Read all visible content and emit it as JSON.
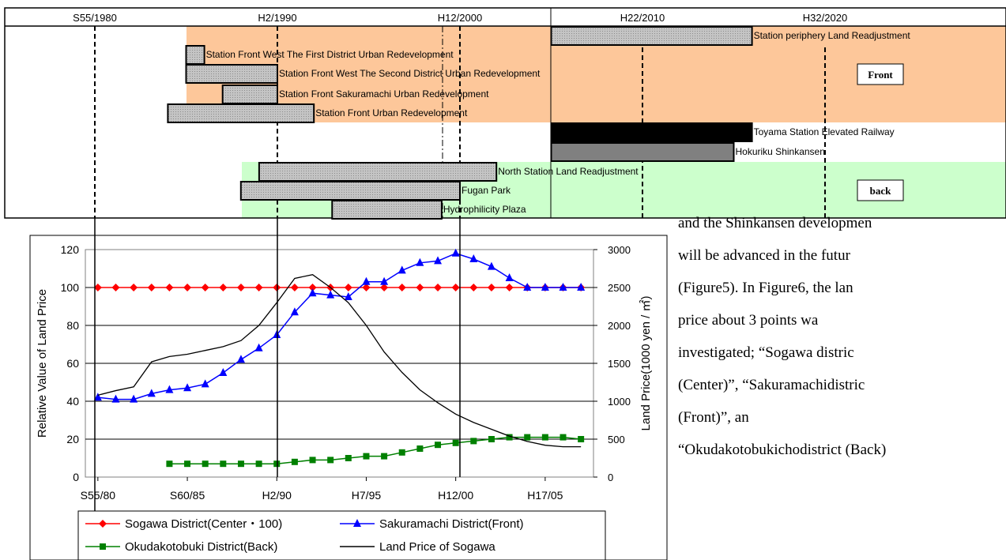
{
  "timeline": {
    "year_labels": [
      "S55/1980",
      "H2/1990",
      "H12/2000",
      "H22/2010",
      "H32/2020"
    ],
    "projects": [
      {
        "name": "Station periphery Land Readjustment",
        "start": 2005.0,
        "end": 2016.0,
        "style": "hatched",
        "zone": "front"
      },
      {
        "name": "Station Front West The First District Urban Redevelopment",
        "start": 1985.0,
        "end": 1986.0,
        "style": "hatched",
        "zone": "front"
      },
      {
        "name": "Station Front West The Second District Urban Redevelopment",
        "start": 1985.0,
        "end": 1990.0,
        "style": "hatched",
        "zone": "front"
      },
      {
        "name": "Station Front Sakuramachi Urban Redevelopment",
        "start": 1987.0,
        "end": 1990.0,
        "style": "hatched",
        "zone": "front"
      },
      {
        "name": "Station Front Urban Redevelopment",
        "start": 1984.0,
        "end": 1992.0,
        "style": "hatched",
        "zone": "front"
      },
      {
        "name": "Toyama Station Elevated Railway",
        "start": 2005.0,
        "end": 2016.0,
        "style": "black",
        "zone": "middle"
      },
      {
        "name": "Hokuriku Shinkansen",
        "start": 2005.0,
        "end": 2015.0,
        "style": "gray",
        "zone": "middle"
      },
      {
        "name": "North Station Land Readjustment",
        "start": 1989.0,
        "end": 2002.0,
        "style": "hatched",
        "zone": "back"
      },
      {
        "name": "Fugan Park",
        "start": 1988.0,
        "end": 2000.0,
        "style": "hatched",
        "zone": "back"
      },
      {
        "name": "Hydrophilicity Plaza",
        "start": 1993.0,
        "end": 1999.0,
        "style": "hatched",
        "zone": "back"
      }
    ],
    "zone_labels": {
      "front": "Front",
      "back": "back"
    },
    "colors": {
      "front": "#fdc79a",
      "back": "#ccffcc",
      "hatched": "#c8c8c8",
      "black": "#000000",
      "gray": "#808080"
    }
  },
  "chart_data": {
    "type": "line",
    "x_tick_labels": [
      "S55/80",
      "S60/85",
      "H2/90",
      "H7/95",
      "H12/00",
      "H17/05"
    ],
    "x_tick_years": [
      1980,
      1985,
      1990,
      1995,
      2000,
      2005
    ],
    "xlim": [
      1979.3,
      2007.7
    ],
    "ylabel": "Relative Value of Land Price",
    "ylim": [
      0,
      120
    ],
    "y_ticks": [
      0,
      20,
      40,
      60,
      80,
      100,
      120
    ],
    "y2label": "Land Price(1000 yen / ㎡)",
    "y2lim": [
      0,
      3000
    ],
    "y2_ticks": [
      0,
      500,
      1000,
      1500,
      2000,
      2500,
      3000
    ],
    "series": [
      {
        "name": "Sogawa District(Center・100)",
        "axis": "left",
        "color": "#ff0000",
        "marker": "diamond",
        "x": [
          1980,
          1981,
          1982,
          1983,
          1984,
          1985,
          1986,
          1987,
          1988,
          1989,
          1990,
          1991,
          1992,
          1993,
          1994,
          1995,
          1996,
          1997,
          1998,
          1999,
          2000,
          2001,
          2002,
          2003,
          2004,
          2005,
          2006,
          2007
        ],
        "values": [
          100,
          100,
          100,
          100,
          100,
          100,
          100,
          100,
          100,
          100,
          100,
          100,
          100,
          100,
          100,
          100,
          100,
          100,
          100,
          100,
          100,
          100,
          100,
          100,
          100,
          100,
          100,
          100
        ]
      },
      {
        "name": "Sakuramachi District(Front)",
        "axis": "left",
        "color": "#0000ff",
        "marker": "triangle",
        "x": [
          1980,
          1981,
          1982,
          1983,
          1984,
          1985,
          1986,
          1987,
          1988,
          1989,
          1990,
          1991,
          1992,
          1993,
          1994,
          1995,
          1996,
          1997,
          1998,
          1999,
          2000,
          2001,
          2002,
          2003,
          2004,
          2005,
          2006,
          2007
        ],
        "values": [
          42,
          41,
          41,
          44,
          46,
          47,
          49,
          55,
          62,
          68,
          75,
          87,
          97,
          96,
          95,
          103,
          103,
          109,
          113,
          114,
          118,
          115,
          111,
          105,
          100,
          100,
          100,
          100
        ]
      },
      {
        "name": "Okudakotobuki District(Back)",
        "axis": "left",
        "color": "#008000",
        "marker": "square",
        "x": [
          1984,
          1985,
          1986,
          1987,
          1988,
          1989,
          1990,
          1991,
          1992,
          1993,
          1994,
          1995,
          1996,
          1997,
          1998,
          1999,
          2000,
          2001,
          2002,
          2003,
          2004,
          2005,
          2006,
          2007
        ],
        "values": [
          7,
          7,
          7,
          7,
          7,
          7,
          7,
          8,
          9,
          9,
          10,
          11,
          11,
          13,
          15,
          17,
          18,
          19,
          20,
          21,
          21,
          21,
          21,
          20
        ]
      },
      {
        "name": "Land Price of Sogawa",
        "axis": "right",
        "color": "#000000",
        "marker": "none",
        "x": [
          1980,
          1981,
          1982,
          1983,
          1984,
          1985,
          1986,
          1987,
          1988,
          1989,
          1990,
          1991,
          1992,
          1993,
          1994,
          1995,
          1996,
          1997,
          1998,
          1999,
          2000,
          2001,
          2002,
          2003,
          2004,
          2005,
          2006,
          2007
        ],
        "values": [
          1080,
          1140,
          1190,
          1520,
          1590,
          1620,
          1670,
          1720,
          1800,
          2000,
          2300,
          2620,
          2670,
          2500,
          2300,
          2000,
          1650,
          1380,
          1150,
          980,
          830,
          720,
          630,
          540,
          470,
          420,
          400,
          400
        ]
      }
    ]
  },
  "paragraph": {
    "lines": [
      "and  the  Shinkansen  developmen",
      "will  be  advanced  in  the  futur",
      "(Figure5).  In  Figure6,  the  lan",
      "price        about        3        points        wa",
      "investigated;        “Sogawa        distric",
      "(Center)”,          “Sakuramachidistric",
      "(Front)”,                                                  an",
      "“Okudakotobukichodistrict (Back)"
    ]
  }
}
